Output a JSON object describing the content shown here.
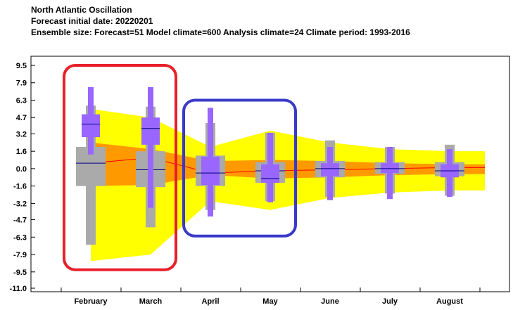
{
  "header": {
    "title": "North Atlantic Oscillation",
    "subtitle": " Forecast initial date: 20220201",
    "ensemble_info": "Ensemble size: Forecast=51 Model climate=600 Analysis climate=24   Climate period: 1993-2016"
  },
  "colors": {
    "climate_outer": "#ffff00",
    "climate_inner": "#ff9900",
    "climate_median": "#ff0000",
    "model_box": "#aaaaaa",
    "forecast_box": "#9966ff",
    "median_line": "#000080",
    "highlight_red": "#e8202a",
    "highlight_blue": "#3a3ac8"
  },
  "chart_data": {
    "type": "box",
    "title": "North Atlantic Oscillation",
    "categories": [
      "February",
      "March",
      "April",
      "May",
      "June",
      "July",
      "August"
    ],
    "y_ticks": [
      "9.5",
      "7.9",
      "6.3",
      "4.7",
      "3.2",
      "1.6",
      "0.0",
      "-1.6",
      "-3.2",
      "-4.7",
      "-6.3",
      "-7.9",
      "-9.5",
      "-11.0"
    ],
    "ylim": [
      -11.0,
      9.5
    ],
    "climate_band_outer": {
      "upper": [
        5.5,
        4.7,
        2.0,
        3.5,
        2.4,
        1.8,
        1.6
      ],
      "lower": [
        -8.5,
        -7.9,
        -3.0,
        -3.8,
        -2.7,
        -2.2,
        -2.0
      ]
    },
    "climate_band_inner": {
      "upper": [
        2.4,
        1.8,
        0.7,
        0.8,
        0.7,
        0.5,
        0.4
      ],
      "lower": [
        -1.6,
        -1.5,
        -0.6,
        -0.9,
        -0.8,
        -0.6,
        -0.5
      ]
    },
    "climate_median": [
      0.5,
      1.0,
      -0.4,
      -0.2,
      -0.1,
      0.0,
      0.1
    ],
    "model_climate": [
      {
        "min": -7.0,
        "q1": -1.6,
        "median": 0.5,
        "q3": 2.0,
        "max": 5.8
      },
      {
        "min": -5.4,
        "q1": -1.7,
        "median": -0.1,
        "q3": 1.6,
        "max": 5.7
      },
      {
        "min": -3.8,
        "q1": -1.6,
        "median": -0.4,
        "q3": 1.2,
        "max": 4.2
      },
      {
        "min": -3.0,
        "q1": -1.3,
        "median": -0.2,
        "q3": 0.6,
        "max": 3.3
      },
      {
        "min": -2.6,
        "q1": -0.8,
        "median": 0.0,
        "q3": 0.7,
        "max": 2.6
      },
      {
        "min": -2.3,
        "q1": -0.5,
        "median": 0.0,
        "q3": 0.6,
        "max": 2.0
      },
      {
        "min": -2.5,
        "q1": -0.7,
        "median": -0.2,
        "q3": 0.6,
        "max": 2.2
      }
    ],
    "forecast": [
      {
        "min": 1.3,
        "p10": 2.9,
        "q1": 2.9,
        "median": 4.1,
        "q3": 5.0,
        "p90": 5.0,
        "max": 7.5
      },
      {
        "min": -3.6,
        "p10": 2.2,
        "q1": 2.2,
        "median": 3.7,
        "q3": 4.7,
        "p90": 4.7,
        "max": 7.5
      },
      {
        "min": -4.4,
        "p10": -1.5,
        "q1": -1.5,
        "median": -0.4,
        "q3": 1.1,
        "p90": 1.1,
        "max": 5.6
      },
      {
        "min": -3.1,
        "p10": -1.3,
        "q1": -1.3,
        "median": -0.9,
        "q3": 0.4,
        "p90": 0.4,
        "max": 3.3
      },
      {
        "min": -2.9,
        "p10": -0.7,
        "q1": -0.7,
        "median": 0.0,
        "q3": 0.5,
        "p90": 0.5,
        "max": 2.0
      },
      {
        "min": -2.8,
        "p10": -0.4,
        "q1": -0.4,
        "median": 0.0,
        "q3": 0.5,
        "p90": 0.5,
        "max": 2.0
      },
      {
        "min": -2.6,
        "p10": -0.8,
        "q1": -0.8,
        "median": -0.2,
        "q3": 0.4,
        "p90": 0.4,
        "max": 1.8
      }
    ],
    "highlights": [
      {
        "name": "red-highlight",
        "categories": [
          "February",
          "March"
        ],
        "color": "#e8202a",
        "yrange": [
          -9.3,
          9.5
        ]
      },
      {
        "name": "blue-highlight",
        "categories": [
          "April",
          "May"
        ],
        "color": "#3a3ac8",
        "yrange": [
          -6.2,
          6.3
        ]
      }
    ]
  }
}
